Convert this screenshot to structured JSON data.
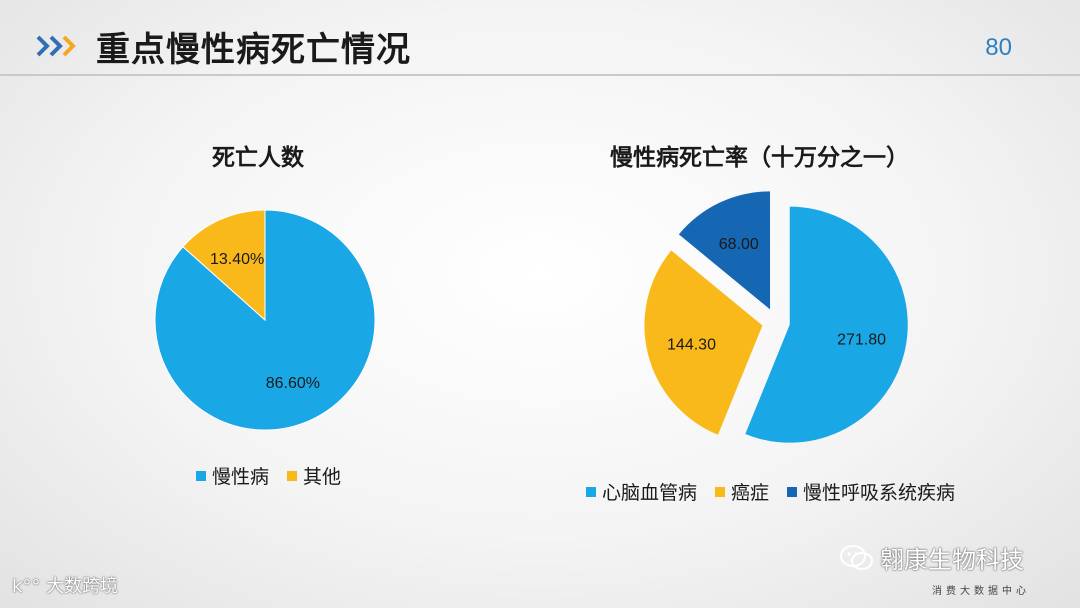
{
  "header": {
    "title": "重点慢性病死亡情况",
    "page_number": "80"
  },
  "colors": {
    "light_blue": "#1aa7e6",
    "yellow": "#f9b91a",
    "dark_blue": "#1566b3"
  },
  "chart_data": [
    {
      "type": "pie",
      "title": "死亡人数",
      "categories": [
        "慢性病",
        "其他"
      ],
      "values": [
        86.6,
        13.4
      ],
      "labels": [
        "86.60%",
        "13.40%"
      ],
      "legend": "bottom"
    },
    {
      "type": "pie",
      "title": "慢性病死亡率（十万分之一）",
      "categories": [
        "心脑血管病",
        "癌症",
        "慢性呼吸系统疾病"
      ],
      "values": [
        271.8,
        144.3,
        68.0
      ],
      "labels": [
        "271.80",
        "144.30",
        "68.00"
      ],
      "exploded": true,
      "legend": "bottom"
    }
  ],
  "watermarks": {
    "left": "大数跨境",
    "right": "翱康生物科技",
    "logo_sub": "消费大数据中心"
  }
}
